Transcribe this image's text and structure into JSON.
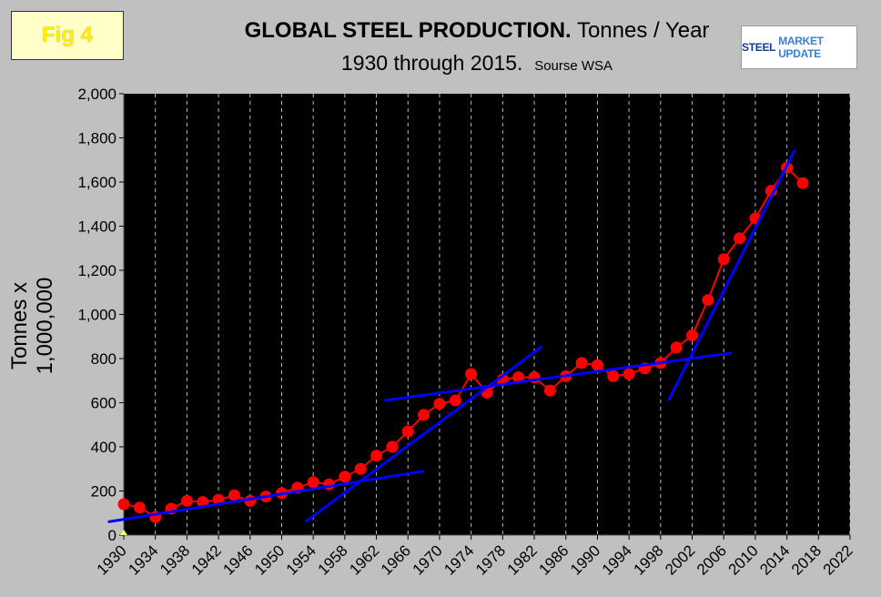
{
  "fig_label": "Fig 4",
  "title": {
    "bold": "GLOBAL STEEL PRODUCTION.",
    "rest": " Tonnes / Year",
    "line2": "1930 through 2015.",
    "source": "Sourse WSA"
  },
  "logo": {
    "part1": "STEEL",
    "part2": "MARKET UPDATE"
  },
  "chart_data": {
    "type": "line",
    "ylabel": "Tonnes x 1,000,000",
    "xlim": [
      1930,
      2022
    ],
    "ylim": [
      0,
      2000
    ],
    "x_ticks": [
      1930,
      1934,
      1938,
      1942,
      1946,
      1950,
      1954,
      1958,
      1962,
      1966,
      1970,
      1974,
      1978,
      1982,
      1986,
      1990,
      1994,
      1998,
      2002,
      2006,
      2010,
      2014,
      2018,
      2022
    ],
    "y_ticks": [
      0,
      200,
      400,
      600,
      800,
      1000,
      1200,
      1400,
      1600,
      1800,
      2000
    ],
    "y_tick_labels": [
      "0",
      "200",
      "400",
      "600",
      "800",
      "1,000",
      "1,200",
      "1,400",
      "1,600",
      "1,800",
      "2,000"
    ],
    "grid_x": true,
    "series": [
      {
        "color": "#ff0000",
        "points": [
          [
            1930,
            140
          ],
          [
            1932,
            125
          ],
          [
            1934,
            82
          ],
          [
            1936,
            120
          ],
          [
            1938,
            155
          ],
          [
            1940,
            150
          ],
          [
            1942,
            160
          ],
          [
            1944,
            180
          ],
          [
            1946,
            155
          ],
          [
            1948,
            175
          ],
          [
            1950,
            190
          ],
          [
            1952,
            215
          ],
          [
            1954,
            240
          ],
          [
            1956,
            230
          ],
          [
            1958,
            265
          ],
          [
            1960,
            300
          ],
          [
            1962,
            360
          ],
          [
            1964,
            400
          ],
          [
            1966,
            470
          ],
          [
            1968,
            545
          ],
          [
            1970,
            595
          ],
          [
            1972,
            610
          ],
          [
            1974,
            730
          ],
          [
            1976,
            645
          ],
          [
            1978,
            705
          ],
          [
            1980,
            715
          ],
          [
            1982,
            715
          ],
          [
            1984,
            655
          ],
          [
            1986,
            720
          ],
          [
            1988,
            780
          ],
          [
            1990,
            770
          ],
          [
            1992,
            720
          ],
          [
            1994,
            730
          ],
          [
            1996,
            755
          ],
          [
            1998,
            780
          ],
          [
            2000,
            850
          ],
          [
            2002,
            905
          ],
          [
            2004,
            1065
          ],
          [
            2006,
            1250
          ],
          [
            2008,
            1345
          ],
          [
            2010,
            1435
          ],
          [
            2012,
            1560
          ],
          [
            2014,
            1665
          ],
          [
            2016,
            1595
          ]
        ]
      }
    ],
    "trend_lines": [
      {
        "color": "#0000ff",
        "from": [
          1928,
          60
        ],
        "to": [
          1968,
          290
        ]
      },
      {
        "color": "#0000ff",
        "from": [
          1953,
          60
        ],
        "to": [
          1983,
          855
        ]
      },
      {
        "color": "#0000ff",
        "from": [
          1963,
          610
        ],
        "to": [
          2007,
          825
        ]
      },
      {
        "color": "#0000ff",
        "from": [
          1999,
          610
        ],
        "to": [
          2015,
          1745
        ]
      }
    ],
    "yellow_marker": [
      1930,
      0
    ]
  }
}
